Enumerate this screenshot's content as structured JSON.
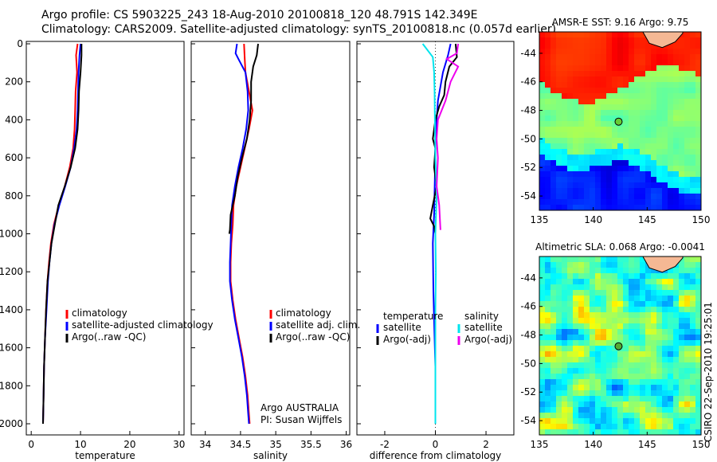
{
  "header": {
    "line1": "Argo profile: CS 5903225_243 18-Aug-2010 20100818_120 48.791S 142.349E",
    "line2": "Climatology: CARS2009. Satellite-adjusted climatology: synTS_20100818.nc (0.057d earlier)"
  },
  "colors": {
    "clim": "#ff0000",
    "sat": "#0000ff",
    "argo": "#000000",
    "satS": "#00e5ee",
    "argoS": "#ee00ee"
  },
  "chart_data": [
    {
      "type": "line",
      "id": "temperature",
      "xlabel": "temperature",
      "xlim": [
        -1,
        31
      ],
      "ylim": [
        0,
        2050
      ],
      "xticks": [
        0,
        10,
        20,
        30
      ],
      "xtick_labels": [
        "0",
        "10",
        "20",
        "30"
      ],
      "yticks": [
        0,
        200,
        400,
        600,
        800,
        1000,
        1200,
        1400,
        1600,
        1800,
        2000
      ],
      "ytick_labels": [
        "0",
        "200",
        "400",
        "600",
        "800",
        "1000",
        "1200",
        "1400",
        "1600",
        "1800",
        "2000"
      ],
      "legend": [
        "climatology",
        "satellite-adjusted climatology",
        "Argo(..raw -QC)"
      ],
      "series": [
        {
          "name": "climatology",
          "color": "clim",
          "points": [
            [
              9.4,
              0
            ],
            [
              9.1,
              60
            ],
            [
              9.3,
              150
            ],
            [
              9.0,
              250
            ],
            [
              8.9,
              350
            ],
            [
              8.8,
              450
            ],
            [
              8.5,
              550
            ],
            [
              7.8,
              650
            ],
            [
              6.8,
              750
            ],
            [
              5.6,
              850
            ],
            [
              4.6,
              950
            ],
            [
              4.0,
              1050
            ],
            [
              3.6,
              1150
            ],
            [
              3.3,
              1250
            ],
            [
              3.0,
              1400
            ],
            [
              2.8,
              1550
            ],
            [
              2.6,
              1700
            ],
            [
              2.5,
              1850
            ],
            [
              2.4,
              2000
            ]
          ]
        },
        {
          "name": "satellite-adjusted climatology",
          "color": "sat",
          "points": [
            [
              10.0,
              0
            ],
            [
              9.8,
              60
            ],
            [
              9.6,
              150
            ],
            [
              9.5,
              250
            ],
            [
              9.4,
              350
            ],
            [
              9.2,
              450
            ],
            [
              8.7,
              550
            ],
            [
              8.0,
              650
            ],
            [
              6.9,
              750
            ],
            [
              5.7,
              850
            ],
            [
              4.7,
              950
            ],
            [
              4.1,
              1050
            ],
            [
              3.7,
              1150
            ],
            [
              3.4,
              1250
            ],
            [
              3.1,
              1400
            ],
            [
              2.8,
              1550
            ],
            [
              2.6,
              1700
            ],
            [
              2.5,
              1850
            ],
            [
              2.4,
              2000
            ]
          ]
        },
        {
          "name": "Argo(..raw -QC)",
          "color": "argo",
          "points": [
            [
              10.2,
              0
            ],
            [
              10.2,
              60
            ],
            [
              10.0,
              150
            ],
            [
              9.7,
              250
            ],
            [
              9.6,
              350
            ],
            [
              9.4,
              450
            ],
            [
              8.9,
              550
            ],
            [
              8.0,
              650
            ],
            [
              6.8,
              750
            ],
            [
              5.5,
              850
            ],
            [
              4.8,
              950
            ],
            [
              4.1,
              1050
            ],
            [
              3.7,
              1150
            ],
            [
              3.3,
              1250
            ],
            [
              3.0,
              1400
            ],
            [
              2.8,
              1550
            ],
            [
              2.6,
              1700
            ],
            [
              2.5,
              1850
            ],
            [
              2.4,
              2000
            ]
          ]
        }
      ]
    },
    {
      "type": "line",
      "id": "salinity",
      "xlabel": "salinity",
      "xlim": [
        33.8,
        36.05
      ],
      "ylim": [
        0,
        2050
      ],
      "xticks": [
        34,
        34.5,
        35,
        35.5,
        36
      ],
      "xtick_labels": [
        "34",
        "34.5",
        "35",
        "35.5",
        "36"
      ],
      "legend": [
        "climatology",
        "satellite adj. clim.",
        "Argo(..raw -QC)"
      ],
      "annotation": [
        "Argo AUSTRALIA",
        "PI: Susan Wijffels"
      ],
      "series": [
        {
          "name": "climatology",
          "color": "clim",
          "points": [
            [
              34.55,
              0
            ],
            [
              34.56,
              80
            ],
            [
              34.57,
              150
            ],
            [
              34.62,
              250
            ],
            [
              34.67,
              350
            ],
            [
              34.62,
              450
            ],
            [
              34.56,
              550
            ],
            [
              34.5,
              650
            ],
            [
              34.44,
              750
            ],
            [
              34.4,
              850
            ],
            [
              34.39,
              950
            ],
            [
              34.37,
              1050
            ],
            [
              34.36,
              1150
            ],
            [
              34.36,
              1250
            ],
            [
              34.39,
              1350
            ],
            [
              34.43,
              1450
            ],
            [
              34.48,
              1550
            ],
            [
              34.53,
              1650
            ],
            [
              34.57,
              1750
            ],
            [
              34.6,
              1850
            ],
            [
              34.62,
              1950
            ],
            [
              34.63,
              2000
            ]
          ]
        },
        {
          "name": "satellite adj. clim.",
          "color": "sat",
          "points": [
            [
              34.45,
              0
            ],
            [
              34.43,
              50
            ],
            [
              34.47,
              80
            ],
            [
              34.57,
              150
            ],
            [
              34.6,
              250
            ],
            [
              34.61,
              350
            ],
            [
              34.58,
              450
            ],
            [
              34.53,
              550
            ],
            [
              34.47,
              650
            ],
            [
              34.42,
              750
            ],
            [
              34.38,
              850
            ],
            [
              34.37,
              950
            ],
            [
              34.36,
              1050
            ],
            [
              34.35,
              1150
            ],
            [
              34.35,
              1250
            ],
            [
              34.38,
              1350
            ],
            [
              34.42,
              1450
            ],
            [
              34.47,
              1550
            ],
            [
              34.52,
              1650
            ],
            [
              34.56,
              1750
            ],
            [
              34.59,
              1850
            ],
            [
              34.61,
              1950
            ],
            [
              34.62,
              2000
            ]
          ]
        },
        {
          "name": "Argo(..raw -QC)",
          "color": "argo",
          "points": [
            [
              34.75,
              0
            ],
            [
              34.73,
              60
            ],
            [
              34.68,
              120
            ],
            [
              34.65,
              200
            ],
            [
              34.65,
              300
            ],
            [
              34.63,
              400
            ],
            [
              34.59,
              500
            ],
            [
              34.52,
              600
            ],
            [
              34.46,
              700
            ],
            [
              34.42,
              800
            ],
            [
              34.36,
              900
            ],
            [
              34.35,
              980
            ],
            [
              34.34,
              1000
            ]
          ]
        }
      ]
    },
    {
      "type": "line",
      "id": "difference",
      "xlabel": "difference from climatology",
      "xlim": [
        -3.1,
        3.1
      ],
      "ylim": [
        0,
        2050
      ],
      "xticks": [
        -2,
        0,
        2
      ],
      "xtick_labels": [
        "-2",
        "0",
        "2"
      ],
      "legend_headers": [
        "temperature",
        "salinity"
      ],
      "legend": [
        "satellite",
        "Argo(-adj)",
        "satellite",
        "Argo(-adj)"
      ],
      "series": [
        {
          "name": "temperature satellite",
          "color": "sat",
          "points": [
            [
              0.6,
              0
            ],
            [
              0.5,
              60
            ],
            [
              0.3,
              150
            ],
            [
              0.1,
              300
            ],
            [
              0.0,
              500
            ],
            [
              -0.02,
              700
            ],
            [
              -0.05,
              900
            ],
            [
              -0.1,
              1050
            ],
            [
              -0.08,
              1300
            ],
            [
              -0.04,
              1500
            ],
            [
              0.0,
              1700
            ],
            [
              0.0,
              2000
            ]
          ]
        },
        {
          "name": "temperature Argo(-adj)",
          "color": "argo",
          "points": [
            [
              0.8,
              0
            ],
            [
              0.85,
              70
            ],
            [
              0.55,
              120
            ],
            [
              0.4,
              200
            ],
            [
              0.35,
              270
            ],
            [
              0.15,
              330
            ],
            [
              0.0,
              400
            ],
            [
              -0.1,
              500
            ],
            [
              0.0,
              550
            ],
            [
              -0.05,
              650
            ],
            [
              0.05,
              750
            ],
            [
              -0.1,
              850
            ],
            [
              -0.2,
              920
            ],
            [
              -0.05,
              960
            ],
            [
              0.0,
              1000
            ]
          ]
        },
        {
          "name": "salinity satellite",
          "color": "satS",
          "points": [
            [
              -0.5,
              0
            ],
            [
              -0.1,
              70
            ],
            [
              -0.05,
              150
            ],
            [
              -0.03,
              250
            ],
            [
              -0.02,
              400
            ],
            [
              0.0,
              600
            ],
            [
              0.05,
              800
            ],
            [
              0.0,
              1000
            ],
            [
              0.02,
              1200
            ],
            [
              0.0,
              1400
            ],
            [
              0.0,
              1700
            ],
            [
              0.0,
              2000
            ]
          ]
        },
        {
          "name": "salinity Argo(-adj)",
          "color": "argoS",
          "points": [
            [
              0.9,
              0
            ],
            [
              0.85,
              50
            ],
            [
              0.45,
              80
            ],
            [
              0.9,
              120
            ],
            [
              0.6,
              200
            ],
            [
              0.4,
              300
            ],
            [
              0.1,
              400
            ],
            [
              0.05,
              500
            ],
            [
              0.1,
              600
            ],
            [
              0.05,
              750
            ],
            [
              0.15,
              850
            ],
            [
              0.2,
              980
            ]
          ]
        }
      ]
    },
    {
      "type": "heatmap",
      "id": "sst-map",
      "title": "AMSR-E SST: 9.16 Argo: 9.75",
      "xlim": [
        135,
        150
      ],
      "ylim": [
        -55,
        -42.5
      ],
      "xticks": [
        135,
        140,
        145,
        150
      ],
      "xtick_labels": [
        "135",
        "140",
        "145",
        "150"
      ],
      "yticks": [
        -44,
        -46,
        -48,
        -50,
        -52,
        -54
      ],
      "ytick_labels": [
        "-44",
        "-46",
        "-48",
        "-50",
        "-52",
        "-54"
      ],
      "marker": [
        142.35,
        -48.79
      ]
    },
    {
      "type": "heatmap",
      "id": "sla-map",
      "title": "Altimetric SLA: 0.068 Argo: -0.0041",
      "xlim": [
        135,
        150
      ],
      "ylim": [
        -55,
        -42.5
      ],
      "xticks": [
        135,
        140,
        145,
        150
      ],
      "xtick_labels": [
        "135",
        "140",
        "145",
        "150"
      ],
      "yticks": [
        -44,
        -46,
        -48,
        -50,
        -52,
        -54
      ],
      "ytick_labels": [
        "-44",
        "-46",
        "-48",
        "-50",
        "-52",
        "-54"
      ],
      "marker": [
        142.35,
        -48.79
      ]
    }
  ],
  "footer": {
    "credit": "CSIRO 22-Sep-2010 19:25:01"
  }
}
